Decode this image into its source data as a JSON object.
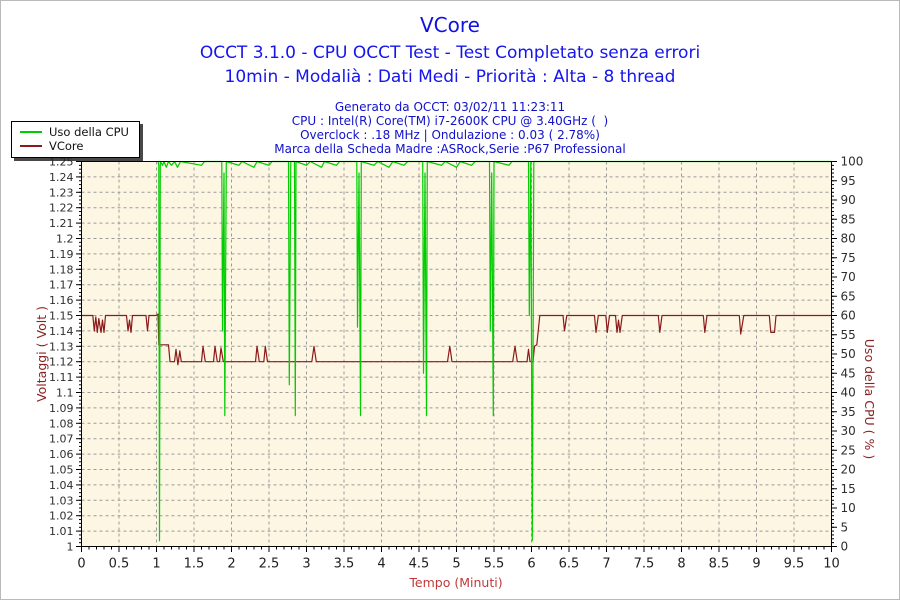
{
  "header": {
    "title": "VCore",
    "subtitle1": "OCCT 3.1.0 - CPU OCCT Test - Test Completato senza errori",
    "subtitle2": "10min - Modalià : Dati Medi - Priorità : Alta - 8 thread",
    "info1": "Generato da OCCT: 03/02/11 11:23:11",
    "info2": "CPU : Intel(R) Core(TM) i7-2600K CPU @ 3.40GHz (  )",
    "info3": "Overclock : .18 MHz | Ondulazione : 0.03 ( 2.78%)",
    "info4": "Marca della Scheda Madre :ASRock,Serie :P67 Professional"
  },
  "legend": {
    "items": [
      {
        "label": "Uso della CPU",
        "color": "#00cc00"
      },
      {
        "label": "VCore",
        "color": "#8b1a1a"
      }
    ]
  },
  "colors": {
    "title_text": "#1212e0",
    "subtitle_text": "#1515ee",
    "info_text": "#1111cc",
    "plot_bg": "#fcf6e3",
    "grid": "#9a9a9a",
    "plot_border": "#000000",
    "tick_text": "#2e2e2e",
    "x_axis_title": "#c03a3a",
    "y_axis_title_left": "#8b2323",
    "y_axis_title_right": "#8b2323",
    "cpu_line": "#00cc00",
    "vcore_line": "#8b1a1a"
  },
  "chart_data": {
    "type": "line",
    "title": "VCore",
    "xlabel": "Tempo (Minuti)",
    "ylabel_left": "Voltaggi ( Volt )",
    "ylabel_right": "Uso della CPU ( % )",
    "xlim": [
      0,
      10
    ],
    "ylim_left": [
      1.0,
      1.25
    ],
    "ylim_right": [
      0,
      100
    ],
    "grid": true,
    "legend_position": "top-left",
    "x_ticks": [
      0,
      0.5,
      1,
      1.5,
      2,
      2.5,
      3,
      3.5,
      4,
      4.5,
      5,
      5.5,
      6,
      6.5,
      7,
      7.5,
      8,
      8.5,
      9,
      9.5,
      10
    ],
    "x_minor_step": 0.1,
    "y_ticks_left": [
      1,
      1.01,
      1.02,
      1.03,
      1.04,
      1.05,
      1.06,
      1.07,
      1.08,
      1.09,
      1.1,
      1.11,
      1.12,
      1.13,
      1.14,
      1.15,
      1.16,
      1.17,
      1.18,
      1.19,
      1.2,
      1.21,
      1.22,
      1.23,
      1.24,
      1.25
    ],
    "y_left_minor_step": 0.0025,
    "y_ticks_right": [
      0,
      5,
      10,
      15,
      20,
      25,
      30,
      35,
      40,
      45,
      50,
      55,
      60,
      65,
      70,
      75,
      80,
      85,
      90,
      95,
      100
    ],
    "y_right_minor_step": 1,
    "series": [
      {
        "id": "uso-della-cpu",
        "name": "Uso della CPU",
        "axis": "right",
        "unit": "%",
        "color": "#00cc00",
        "points": [
          [
            1.02,
            100
          ],
          [
            1.03,
            99
          ],
          [
            1.04,
            1.5
          ],
          [
            1.05,
            100
          ],
          [
            1.08,
            99
          ],
          [
            1.1,
            100
          ],
          [
            1.13,
            98.5
          ],
          [
            1.16,
            100
          ],
          [
            1.2,
            99
          ],
          [
            1.24,
            100
          ],
          [
            1.28,
            98.5
          ],
          [
            1.32,
            100
          ],
          [
            1.6,
            99
          ],
          [
            1.64,
            100
          ],
          [
            1.87,
            100
          ],
          [
            1.88,
            56
          ],
          [
            1.9,
            97
          ],
          [
            1.91,
            34
          ],
          [
            1.93,
            100
          ],
          [
            2.1,
            99
          ],
          [
            2.14,
            100
          ],
          [
            2.3,
            98.5
          ],
          [
            2.34,
            100
          ],
          [
            2.5,
            99
          ],
          [
            2.54,
            100
          ],
          [
            2.76,
            100
          ],
          [
            2.77,
            42
          ],
          [
            2.79,
            100
          ],
          [
            2.84,
            100
          ],
          [
            2.85,
            34
          ],
          [
            2.86,
            100
          ],
          [
            3.0,
            99
          ],
          [
            3.05,
            100
          ],
          [
            3.2,
            98.5
          ],
          [
            3.24,
            100
          ],
          [
            3.4,
            99
          ],
          [
            3.44,
            100
          ],
          [
            3.67,
            100
          ],
          [
            3.68,
            57
          ],
          [
            3.7,
            97
          ],
          [
            3.72,
            34
          ],
          [
            3.73,
            100
          ],
          [
            3.9,
            99
          ],
          [
            3.95,
            100
          ],
          [
            4.1,
            98.5
          ],
          [
            4.15,
            100
          ],
          [
            4.3,
            99
          ],
          [
            4.35,
            100
          ],
          [
            4.55,
            100
          ],
          [
            4.56,
            45
          ],
          [
            4.58,
            97
          ],
          [
            4.6,
            34
          ],
          [
            4.61,
            100
          ],
          [
            4.8,
            99
          ],
          [
            4.85,
            100
          ],
          [
            5.0,
            98.5
          ],
          [
            5.05,
            100
          ],
          [
            5.2,
            99
          ],
          [
            5.25,
            100
          ],
          [
            5.44,
            100
          ],
          [
            5.45,
            56
          ],
          [
            5.47,
            97
          ],
          [
            5.49,
            34
          ],
          [
            5.5,
            100
          ],
          [
            5.7,
            99
          ],
          [
            5.74,
            100
          ],
          [
            5.96,
            100
          ],
          [
            5.97,
            60
          ],
          [
            5.99,
            100
          ],
          [
            6.01,
            1.5
          ],
          [
            6.03,
            100
          ],
          [
            10,
            100
          ]
        ]
      },
      {
        "id": "vcore",
        "name": "VCore",
        "axis": "left",
        "unit": "V",
        "color": "#8b1a1a",
        "points": [
          [
            0,
            1.15
          ],
          [
            0.15,
            1.15
          ],
          [
            0.17,
            1.14
          ],
          [
            0.19,
            1.149
          ],
          [
            0.21,
            1.139
          ],
          [
            0.23,
            1.148
          ],
          [
            0.26,
            1.139
          ],
          [
            0.28,
            1.147
          ],
          [
            0.3,
            1.139
          ],
          [
            0.32,
            1.15
          ],
          [
            0.6,
            1.15
          ],
          [
            0.62,
            1.14
          ],
          [
            0.64,
            1.147
          ],
          [
            0.66,
            1.139
          ],
          [
            0.68,
            1.15
          ],
          [
            0.86,
            1.15
          ],
          [
            0.88,
            1.14
          ],
          [
            0.9,
            1.15
          ],
          [
            1.0,
            1.15
          ],
          [
            1.02,
            1.151
          ],
          [
            1.03,
            1.131
          ],
          [
            1.16,
            1.131
          ],
          [
            1.18,
            1.12
          ],
          [
            1.24,
            1.12
          ],
          [
            1.26,
            1.128
          ],
          [
            1.285,
            1.118
          ],
          [
            1.31,
            1.127
          ],
          [
            1.33,
            1.12
          ],
          [
            1.6,
            1.12
          ],
          [
            1.62,
            1.13
          ],
          [
            1.65,
            1.12
          ],
          [
            1.76,
            1.12
          ],
          [
            1.78,
            1.13
          ],
          [
            1.81,
            1.12
          ],
          [
            1.84,
            1.12
          ],
          [
            1.86,
            1.129
          ],
          [
            1.89,
            1.12
          ],
          [
            2.32,
            1.12
          ],
          [
            2.34,
            1.13
          ],
          [
            2.37,
            1.12
          ],
          [
            2.43,
            1.12
          ],
          [
            2.45,
            1.13
          ],
          [
            2.48,
            1.12
          ],
          [
            3.07,
            1.12
          ],
          [
            3.1,
            1.13
          ],
          [
            3.13,
            1.12
          ],
          [
            4.88,
            1.12
          ],
          [
            4.91,
            1.13
          ],
          [
            4.94,
            1.12
          ],
          [
            5.75,
            1.12
          ],
          [
            5.78,
            1.13
          ],
          [
            5.81,
            1.12
          ],
          [
            5.94,
            1.12
          ],
          [
            5.96,
            1.128
          ],
          [
            5.98,
            1.12
          ],
          [
            6.02,
            1.12
          ],
          [
            6.04,
            1.13
          ],
          [
            6.07,
            1.131
          ],
          [
            6.11,
            1.15
          ],
          [
            6.42,
            1.15
          ],
          [
            6.44,
            1.14
          ],
          [
            6.47,
            1.15
          ],
          [
            6.84,
            1.15
          ],
          [
            6.86,
            1.139
          ],
          [
            6.89,
            1.15
          ],
          [
            6.99,
            1.15
          ],
          [
            7.01,
            1.139
          ],
          [
            7.04,
            1.15
          ],
          [
            7.12,
            1.15
          ],
          [
            7.14,
            1.139
          ],
          [
            7.16,
            1.147
          ],
          [
            7.18,
            1.139
          ],
          [
            7.21,
            1.15
          ],
          [
            7.69,
            1.15
          ],
          [
            7.71,
            1.139
          ],
          [
            7.74,
            1.15
          ],
          [
            8.29,
            1.15
          ],
          [
            8.31,
            1.139
          ],
          [
            8.34,
            1.15
          ],
          [
            8.77,
            1.15
          ],
          [
            8.79,
            1.138
          ],
          [
            8.83,
            1.15
          ],
          [
            9.17,
            1.15
          ],
          [
            9.19,
            1.139
          ],
          [
            9.24,
            1.139
          ],
          [
            9.26,
            1.15
          ],
          [
            10,
            1.15
          ]
        ]
      }
    ]
  }
}
